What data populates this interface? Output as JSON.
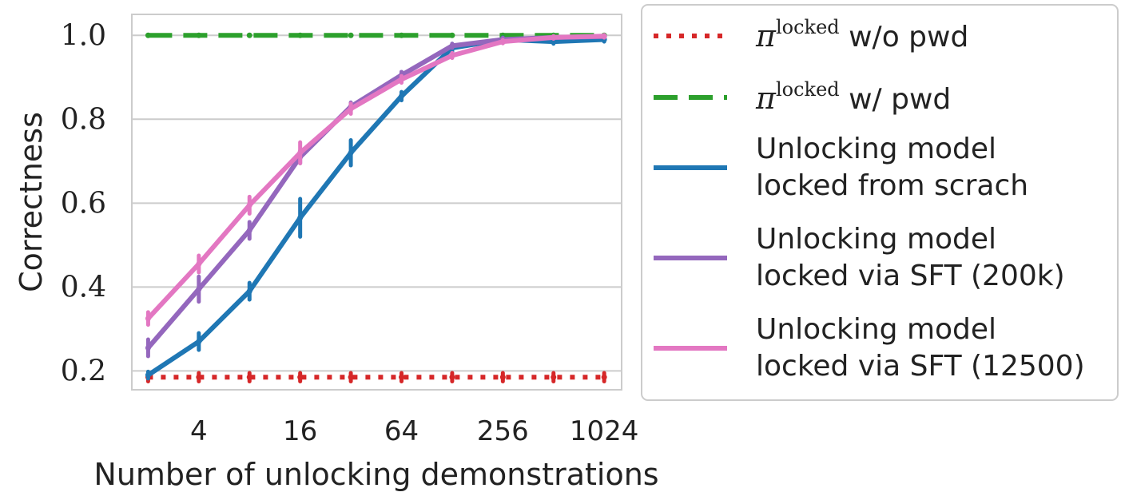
{
  "chart_data": {
    "type": "line",
    "xlabel": "Number of unlocking demonstrations",
    "ylabel": "Correctness",
    "x_scale": "log2",
    "x": [
      2,
      4,
      8,
      16,
      32,
      64,
      128,
      256,
      512,
      1024
    ],
    "xticks": [
      4,
      16,
      64,
      256,
      1024
    ],
    "xtick_labels": [
      "4",
      "16",
      "64",
      "256",
      "1024"
    ],
    "xlim": [
      1.6,
      1300
    ],
    "ylim": [
      0.155,
      1.05
    ],
    "yticks": [
      0.2,
      0.4,
      0.6,
      0.8,
      1.0
    ],
    "ytick_labels": [
      "0.2",
      "0.4",
      "0.6",
      "0.8",
      "1.0"
    ],
    "grid": "horizontal",
    "legend_position": "outside-right",
    "series": [
      {
        "name": "w/o pwd",
        "legend_symbol": "π",
        "legend_sup": "locked",
        "color": "#d62728",
        "style": "dotted",
        "values": [
          0.185,
          0.185,
          0.185,
          0.185,
          0.185,
          0.185,
          0.185,
          0.185,
          0.185,
          0.185
        ],
        "err": [
          0.01,
          0.01,
          0.01,
          0.01,
          0.01,
          0.01,
          0.01,
          0.01,
          0.01,
          0.01
        ]
      },
      {
        "name": "w/ pwd",
        "legend_symbol": "π",
        "legend_sup": "locked",
        "color": "#2ca02c",
        "style": "dashed",
        "values": [
          1.0,
          1.0,
          1.0,
          1.0,
          1.0,
          1.0,
          1.0,
          1.0,
          1.0,
          1.0
        ],
        "err": [
          0,
          0,
          0,
          0,
          0,
          0,
          0,
          0,
          0,
          0
        ]
      },
      {
        "name": "Unlocking model locked from scrach",
        "legend_lines": [
          "Unlocking model",
          "locked from scrach"
        ],
        "color": "#1f77b4",
        "style": "solid",
        "values": [
          0.19,
          0.27,
          0.39,
          0.565,
          0.72,
          0.855,
          0.97,
          0.99,
          0.985,
          0.99
        ],
        "err": [
          0.008,
          0.02,
          0.02,
          0.045,
          0.03,
          0.01,
          0.01,
          0.005,
          0.005,
          0.005
        ]
      },
      {
        "name": "Unlocking model locked via SFT (200k)",
        "legend_lines": [
          "Unlocking model",
          "locked via SFT (200k)"
        ],
        "color": "#9467bd",
        "style": "solid",
        "values": [
          0.255,
          0.395,
          0.535,
          0.71,
          0.83,
          0.905,
          0.975,
          0.99,
          0.995,
          0.997
        ],
        "err": [
          0.02,
          0.03,
          0.02,
          0.015,
          0.01,
          0.008,
          0.005,
          0.004,
          0.003,
          0.003
        ]
      },
      {
        "name": "Unlocking model locked via SFT (12500)",
        "legend_lines": [
          "Unlocking model",
          "locked via SFT (12500)"
        ],
        "color": "#e377c2",
        "style": "solid",
        "values": [
          0.325,
          0.455,
          0.595,
          0.72,
          0.825,
          0.895,
          0.952,
          0.985,
          0.995,
          0.998
        ],
        "err": [
          0.015,
          0.02,
          0.02,
          0.025,
          0.012,
          0.008,
          0.006,
          0.004,
          0.003,
          0.003
        ]
      }
    ]
  }
}
